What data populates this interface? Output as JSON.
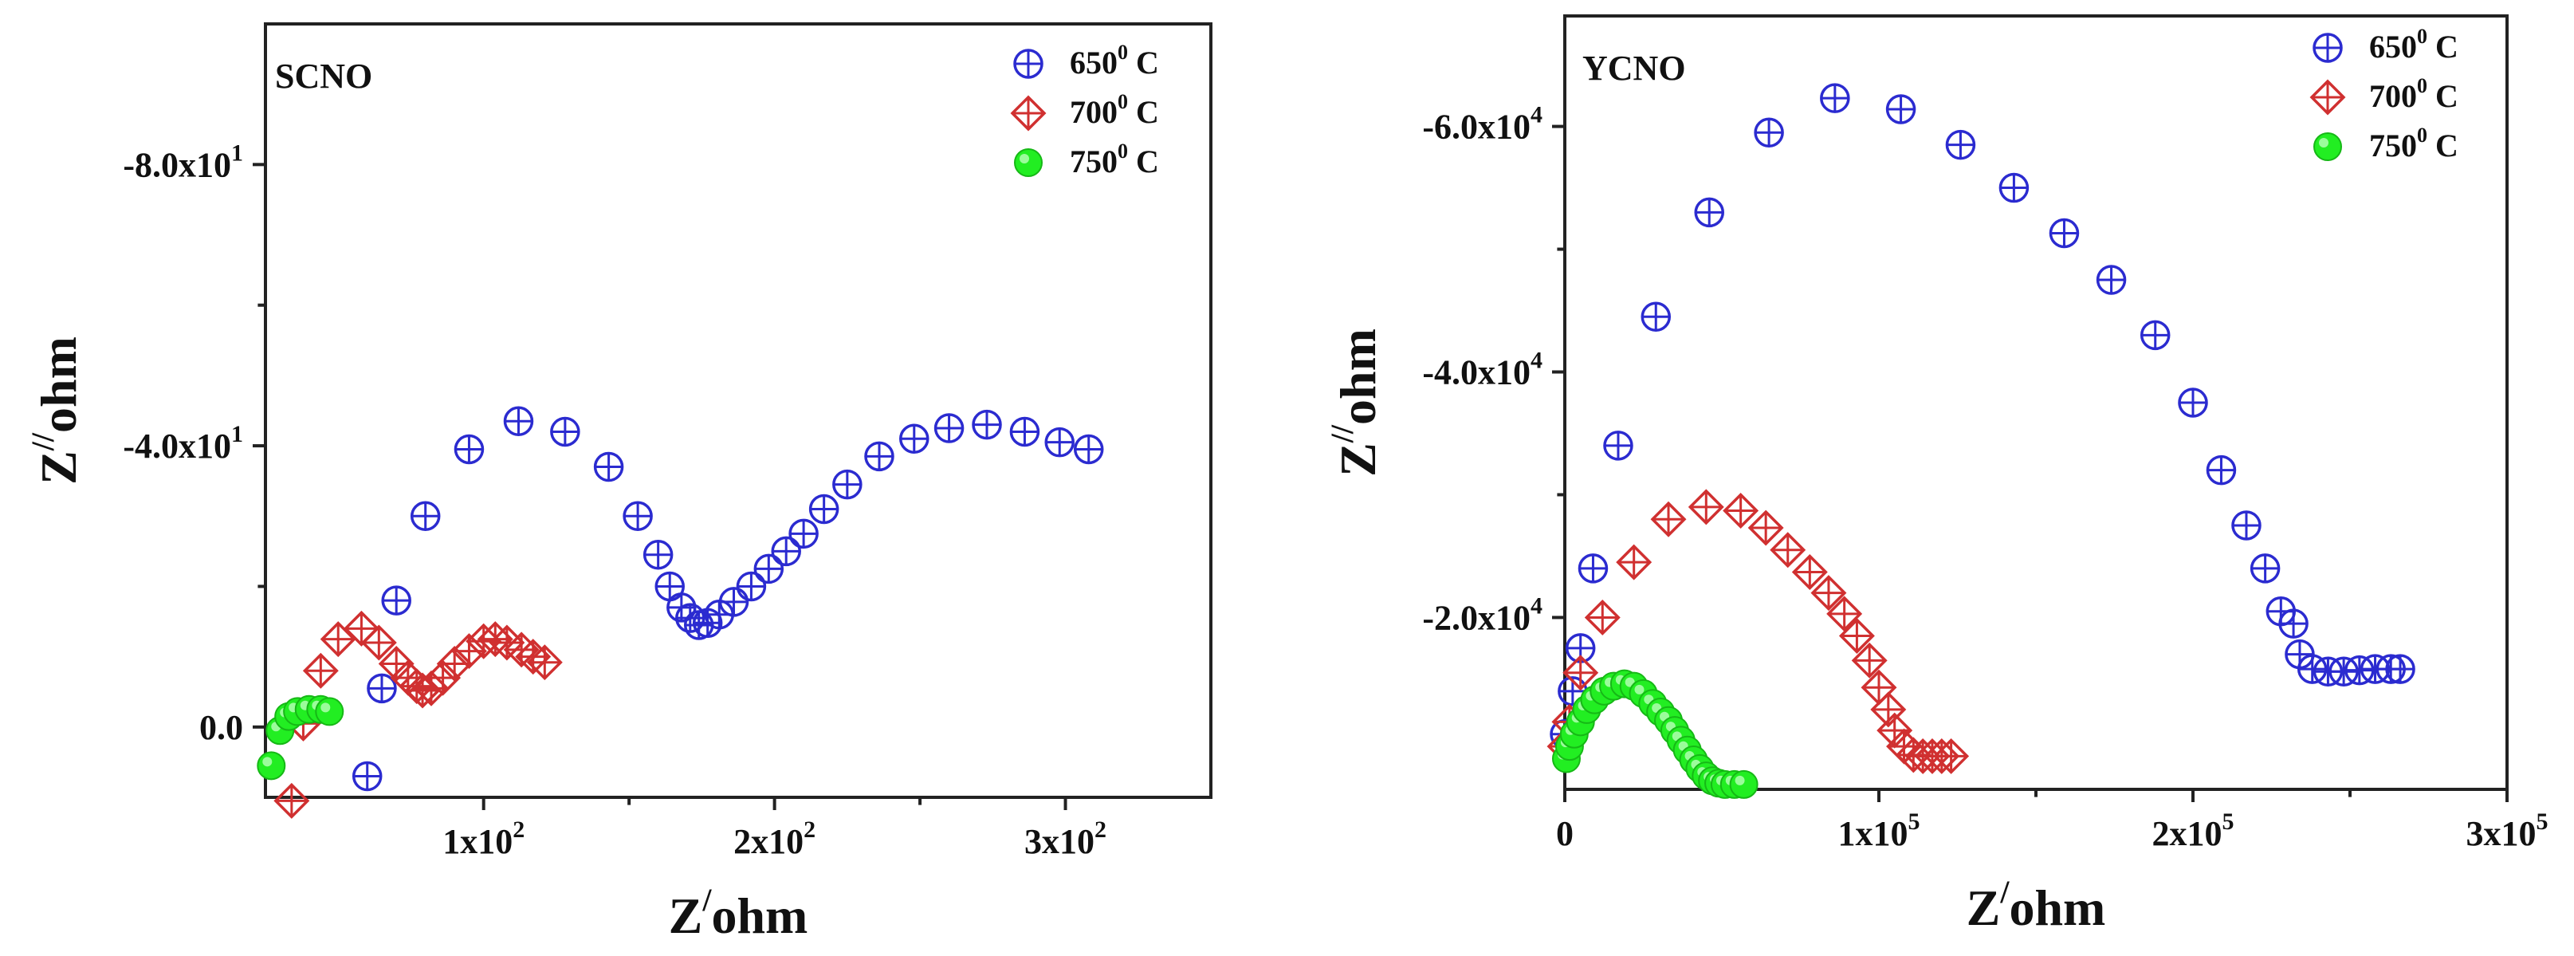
{
  "chart_data": [
    {
      "type": "scatter",
      "title": "SCNO",
      "xlabel": "Z/ohm",
      "ylabel": "Z//ohm",
      "xlim": [
        25,
        350
      ],
      "ylim": [
        10,
        -100
      ],
      "y_inverted": true,
      "grid": false,
      "legend_position": "top-right",
      "xticks": [
        {
          "value": 100,
          "base": "1x10",
          "exp": "2"
        },
        {
          "value": 200,
          "base": "2x10",
          "exp": "2"
        },
        {
          "value": 300,
          "base": "3x10",
          "exp": "2"
        }
      ],
      "yticks": [
        {
          "value": 0,
          "base": "0.0",
          "exp": ""
        },
        {
          "value": -40,
          "base": "-4.0x10",
          "exp": "1"
        },
        {
          "value": -80,
          "base": "-8.0x10",
          "exp": "1"
        }
      ],
      "series": [
        {
          "name": "650",
          "unit_sup": "0",
          "unit": " C",
          "marker": "circle-plus",
          "color": "#2b2bd0",
          "points": [
            [
              60,
              7
            ],
            [
              65,
              -5.5
            ],
            [
              70,
              -18
            ],
            [
              80,
              -30
            ],
            [
              95,
              -39.5
            ],
            [
              112,
              -43.5
            ],
            [
              128,
              -42
            ],
            [
              143,
              -37
            ],
            [
              153,
              -30
            ],
            [
              160,
              -24.5
            ],
            [
              164,
              -20
            ],
            [
              168,
              -17
            ],
            [
              171,
              -15.5
            ],
            [
              174,
              -14.5
            ],
            [
              177,
              -14.8
            ],
            [
              181,
              -16
            ],
            [
              186,
              -17.8
            ],
            [
              192,
              -20
            ],
            [
              198,
              -22.5
            ],
            [
              204,
              -25
            ],
            [
              210,
              -27.5
            ],
            [
              217,
              -31
            ],
            [
              225,
              -34.5
            ],
            [
              236,
              -38.5
            ],
            [
              248,
              -41
            ],
            [
              260,
              -42.5
            ],
            [
              273,
              -43
            ],
            [
              286,
              -42
            ],
            [
              298,
              -40.5
            ],
            [
              308,
              -39.5
            ]
          ]
        },
        {
          "name": "700",
          "unit_sup": "0",
          "unit": " C",
          "marker": "diamond-plus",
          "color": "#d03030",
          "points": [
            [
              34,
              10.5
            ],
            [
              38,
              -0.5
            ],
            [
              44,
              -8
            ],
            [
              50,
              -12.5
            ],
            [
              58,
              -14
            ],
            [
              64,
              -12
            ],
            [
              70,
              -9
            ],
            [
              74,
              -7
            ],
            [
              77,
              -5.8
            ],
            [
              79,
              -5.2
            ],
            [
              82,
              -5.5
            ],
            [
              86,
              -7
            ],
            [
              90,
              -9
            ],
            [
              95,
              -10.8
            ],
            [
              100,
              -12.2
            ],
            [
              104,
              -12.5
            ],
            [
              108,
              -12
            ],
            [
              113,
              -11
            ],
            [
              117,
              -10
            ],
            [
              121,
              -9.2
            ]
          ]
        },
        {
          "name": "750",
          "unit_sup": "0",
          "unit": " C",
          "marker": "filled-circle",
          "color": "#22ee22",
          "points": [
            [
              27,
              5.5
            ],
            [
              30,
              0.5
            ],
            [
              33,
              -1.5
            ],
            [
              36,
              -2.2
            ],
            [
              40,
              -2.5
            ],
            [
              44,
              -2.5
            ],
            [
              47,
              -2.2
            ]
          ]
        }
      ]
    },
    {
      "type": "scatter",
      "title": "YCNO",
      "xlabel": "Z/ohm",
      "ylabel": "Z//ohm",
      "xlim": [
        0,
        300000
      ],
      "ylim": [
        -6000,
        -69000
      ],
      "y_inverted": true,
      "grid": false,
      "legend_position": "top-right",
      "xticks": [
        {
          "value": 0,
          "base": "0",
          "exp": ""
        },
        {
          "value": 100000,
          "base": "1x10",
          "exp": "5"
        },
        {
          "value": 200000,
          "base": "2x10",
          "exp": "5"
        },
        {
          "value": 300000,
          "base": "3x10",
          "exp": "5"
        }
      ],
      "yticks": [
        {
          "value": -20000,
          "base": "-2.0x10",
          "exp": "4"
        },
        {
          "value": -40000,
          "base": "-4.0x10",
          "exp": "4"
        },
        {
          "value": -60000,
          "base": "-6.0x10",
          "exp": "4"
        }
      ],
      "series": [
        {
          "name": "650",
          "unit_sup": "0",
          "unit": " C",
          "marker": "circle-plus",
          "color": "#2b2bd0",
          "points": [
            [
              0,
              -10500
            ],
            [
              2500,
              -14000
            ],
            [
              5000,
              -17500
            ],
            [
              9000,
              -24000
            ],
            [
              17000,
              -34000
            ],
            [
              29000,
              -44500
            ],
            [
              46000,
              -53000
            ],
            [
              65000,
              -59500
            ],
            [
              86000,
              -62300
            ],
            [
              107000,
              -61400
            ],
            [
              126000,
              -58500
            ],
            [
              143000,
              -55000
            ],
            [
              159000,
              -51300
            ],
            [
              174000,
              -47500
            ],
            [
              188000,
              -43000
            ],
            [
              200000,
              -37500
            ],
            [
              209000,
              -32000
            ],
            [
              217000,
              -27500
            ],
            [
              223000,
              -24000
            ],
            [
              228000,
              -20500
            ],
            [
              232000,
              -19500
            ],
            [
              234000,
              -17000
            ],
            [
              238000,
              -15800
            ],
            [
              243000,
              -15600
            ],
            [
              248000,
              -15600
            ],
            [
              253000,
              -15700
            ],
            [
              258000,
              -15800
            ],
            [
              263000,
              -15800
            ],
            [
              266000,
              -15800
            ]
          ]
        },
        {
          "name": "700",
          "unit_sup": "0",
          "unit": " C",
          "marker": "diamond-plus",
          "color": "#d03030",
          "points": [
            [
              0,
              -9500
            ],
            [
              1500,
              -11500
            ],
            [
              5000,
              -15500
            ],
            [
              12000,
              -20000
            ],
            [
              22000,
              -24500
            ],
            [
              33000,
              -28000
            ],
            [
              45000,
              -29000
            ],
            [
              56000,
              -28700
            ],
            [
              64000,
              -27300
            ],
            [
              71000,
              -25500
            ],
            [
              78000,
              -23700
            ],
            [
              84000,
              -22000
            ],
            [
              89000,
              -20300
            ],
            [
              93000,
              -18500
            ],
            [
              97000,
              -16500
            ],
            [
              100000,
              -14300
            ],
            [
              103000,
              -12500
            ],
            [
              105000,
              -10800
            ],
            [
              108000,
              -9500
            ],
            [
              111000,
              -8800
            ],
            [
              114000,
              -8700
            ],
            [
              117000,
              -8700
            ],
            [
              120000,
              -8700
            ],
            [
              123000,
              -8700
            ]
          ]
        },
        {
          "name": "750",
          "unit_sup": "0",
          "unit": " C",
          "marker": "filled-circle",
          "color": "#22ee22",
          "points": [
            [
              500,
              -8500
            ],
            [
              1500,
              -9500
            ],
            [
              3000,
              -10500
            ],
            [
              5000,
              -11500
            ],
            [
              7000,
              -12500
            ],
            [
              9500,
              -13300
            ],
            [
              12500,
              -14000
            ],
            [
              15500,
              -14400
            ],
            [
              19000,
              -14600
            ],
            [
              22000,
              -14400
            ],
            [
              25000,
              -13800
            ],
            [
              28000,
              -13000
            ],
            [
              30500,
              -12300
            ],
            [
              33000,
              -11600
            ],
            [
              35000,
              -10800
            ],
            [
              37000,
              -10000
            ],
            [
              39000,
              -9200
            ],
            [
              41000,
              -8400
            ],
            [
              43000,
              -7700
            ],
            [
              45000,
              -7100
            ],
            [
              47000,
              -6700
            ],
            [
              49000,
              -6500
            ],
            [
              51000,
              -6400
            ],
            [
              54000,
              -6400
            ],
            [
              57000,
              -6400
            ]
          ]
        }
      ]
    }
  ]
}
